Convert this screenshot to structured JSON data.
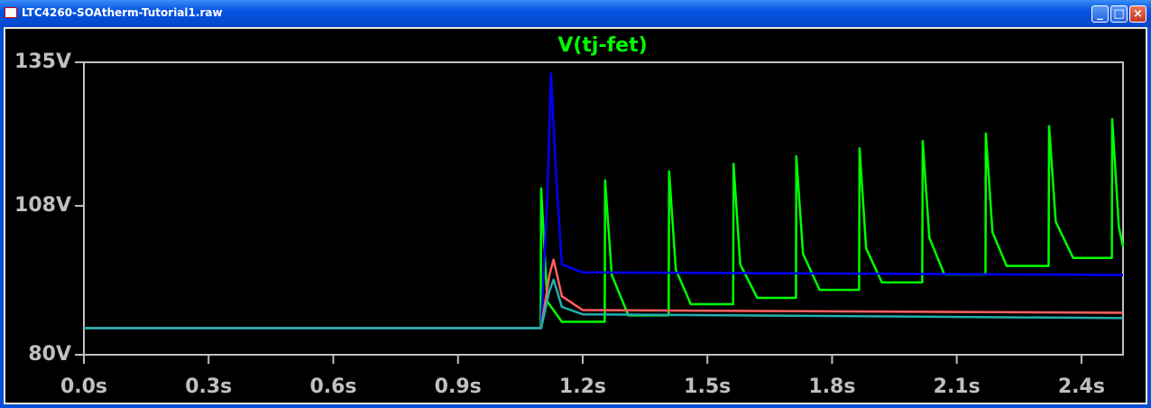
{
  "window": {
    "title": "LTC4260-SOAtherm-Tutorial1.raw"
  },
  "chart_data": {
    "type": "line",
    "title": "V(tj-fet)",
    "xlim": [
      0,
      2.5
    ],
    "xticks": [
      {
        "value": 0,
        "label": "0.0s"
      },
      {
        "value": 0.3,
        "label": "0.3s"
      },
      {
        "value": 0.6,
        "label": "0.6s"
      },
      {
        "value": 0.9,
        "label": "0.9s"
      },
      {
        "value": 1.2,
        "label": "1.2s"
      },
      {
        "value": 1.5,
        "label": "1.5s"
      },
      {
        "value": 1.8,
        "label": "1.8s"
      },
      {
        "value": 2.1,
        "label": "2.1s"
      },
      {
        "value": 2.4,
        "label": "2.4s"
      }
    ],
    "ylim": [
      80,
      135
    ],
    "yticks": [
      {
        "value": 80,
        "label": "80V"
      },
      {
        "value": 108,
        "label": "108V"
      },
      {
        "value": 135,
        "label": "135V"
      }
    ],
    "series": [
      {
        "color": "#00ff00",
        "x": [
          0,
          1.099,
          1.1,
          1.115,
          1.15,
          1.253,
          1.254,
          1.27,
          1.31,
          1.407,
          1.408,
          1.424,
          1.46,
          1.562,
          1.563,
          1.579,
          1.62,
          1.713,
          1.714,
          1.73,
          1.77,
          1.865,
          1.866,
          1.882,
          1.92,
          2.017,
          2.018,
          2.034,
          2.07,
          2.169,
          2.17,
          2.186,
          2.22,
          2.321,
          2.322,
          2.338,
          2.38,
          2.473,
          2.474,
          2.49,
          2.5
        ],
        "values": [
          85,
          85,
          111.3,
          90,
          86.2,
          86.2,
          112.8,
          95,
          87.4,
          87.4,
          114.5,
          96,
          89.5,
          89.5,
          115.9,
          97,
          90.7,
          90.7,
          117.3,
          99,
          92.2,
          92.2,
          118.8,
          100,
          93.6,
          93.6,
          120.2,
          102,
          95.1,
          95.1,
          121.6,
          103,
          96.7,
          96.7,
          123,
          105,
          98.2,
          98.2,
          124.3,
          104,
          100.3
        ]
      },
      {
        "color": "#0000ff",
        "x": [
          0,
          1.1,
          1.115,
          1.124,
          1.135,
          1.15,
          1.2,
          2.5
        ],
        "values": [
          85,
          85,
          110,
          132.9,
          115,
          97,
          95.5,
          95
        ]
      },
      {
        "color": "#ff6060",
        "x": [
          0,
          1.1,
          1.12,
          1.13,
          1.15,
          1.2,
          2.5
        ],
        "values": [
          85,
          85,
          95,
          97.9,
          91,
          88.4,
          87.9
        ]
      },
      {
        "color": "#20b0b0",
        "x": [
          0,
          1.1,
          1.12,
          1.13,
          1.15,
          1.2,
          2.5
        ],
        "values": [
          85,
          85,
          92,
          94.1,
          89,
          87.6,
          86.9
        ]
      }
    ]
  }
}
